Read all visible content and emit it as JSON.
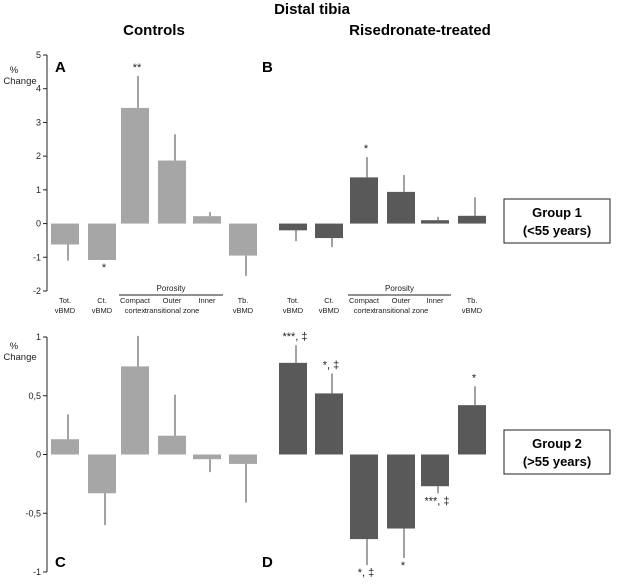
{
  "figure": {
    "title": "Distal tibia",
    "col_controls": "Controls",
    "col_treated": "Risedronate-treated",
    "ylabel_line1": "%",
    "ylabel_line2": "Change",
    "porosity_label": "Porosity",
    "group1_line1": "Group 1",
    "group1_line2": "(<55 years)",
    "group2_line1": "Group 2",
    "group2_line2": "(>55 years)"
  },
  "chart_data": [
    {
      "type": "bar",
      "panel": "A",
      "categories": [
        "Tot. vBMD",
        "Ct. vBMD",
        "Compact cortex",
        "Outer transitional zone",
        "Inner transitional zone",
        "Tb. vBMD"
      ],
      "category_lines": [
        [
          "Tot.",
          "vBMD"
        ],
        [
          "Ct.",
          "vBMD"
        ],
        [
          "Compact",
          "cortex"
        ],
        [
          "Outer",
          "transitional zone"
        ],
        [
          "Inner",
          ""
        ],
        [
          "Tb.",
          "vBMD"
        ]
      ],
      "values": [
        -0.62,
        -1.08,
        3.43,
        1.87,
        0.22,
        -0.95
      ],
      "errors": [
        0.48,
        0.0,
        0.95,
        0.78,
        0.12,
        0.6
      ],
      "annotations": [
        "",
        "*",
        "**",
        "",
        "",
        ""
      ],
      "ylim": [
        -2,
        5
      ],
      "yticks": [
        -2,
        -1,
        0,
        1,
        2,
        3,
        4,
        5
      ],
      "ytick_labels": [
        "-2",
        "-1",
        "0",
        "1",
        "2",
        "3",
        "4",
        "5"
      ],
      "color": "#a6a6a6"
    },
    {
      "type": "bar",
      "panel": "B",
      "categories": [
        "Tot. vBMD",
        "Ct. vBMD",
        "Compact cortex",
        "Outer transitional zone",
        "Inner transitional zone",
        "Tb. vBMD"
      ],
      "category_lines": [
        [
          "Tot.",
          "vBMD"
        ],
        [
          "Ct.",
          "vBMD"
        ],
        [
          "Compact",
          "cortex"
        ],
        [
          "Outer",
          "transitional zone"
        ],
        [
          "Inner",
          ""
        ],
        [
          "Tb.",
          "vBMD"
        ]
      ],
      "values": [
        -0.2,
        -0.43,
        1.37,
        0.94,
        0.1,
        0.23
      ],
      "errors": [
        0.32,
        0.27,
        0.6,
        0.5,
        0.1,
        0.55
      ],
      "annotations": [
        "",
        "",
        "*",
        "",
        "",
        ""
      ],
      "ylim": [
        -2,
        5
      ],
      "color": "#595959"
    },
    {
      "type": "bar",
      "panel": "C",
      "categories": [
        "Tot. vBMD",
        "Ct. vBMD",
        "Compact cortex",
        "Outer transitional zone",
        "Inner transitional zone",
        "Tb. vBMD"
      ],
      "values": [
        0.13,
        -0.33,
        0.75,
        0.16,
        -0.04,
        -0.08
      ],
      "errors": [
        0.21,
        0.27,
        0.26,
        0.35,
        0.11,
        0.33
      ],
      "annotations": [
        "",
        "",
        "",
        "",
        "",
        ""
      ],
      "ylim": [
        -1,
        1
      ],
      "yticks": [
        -1,
        -0.5,
        0,
        0.5,
        1
      ],
      "ytick_labels": [
        "-1",
        "-0,5",
        "0",
        "0,5",
        "1"
      ],
      "color": "#a6a6a6"
    },
    {
      "type": "bar",
      "panel": "D",
      "categories": [
        "Tot. vBMD",
        "Ct. vBMD",
        "Compact cortex",
        "Outer transitional zone",
        "Inner transitional zone",
        "Tb. vBMD"
      ],
      "values": [
        0.78,
        0.52,
        -0.72,
        -0.63,
        -0.27,
        0.42
      ],
      "errors": [
        0.15,
        0.17,
        0.22,
        0.25,
        0.06,
        0.16
      ],
      "annotations": [
        "***, ‡",
        "*, ‡",
        "*, ‡",
        "*",
        "***, ‡",
        "*"
      ],
      "ylim": [
        -1,
        1
      ],
      "color": "#595959"
    }
  ]
}
